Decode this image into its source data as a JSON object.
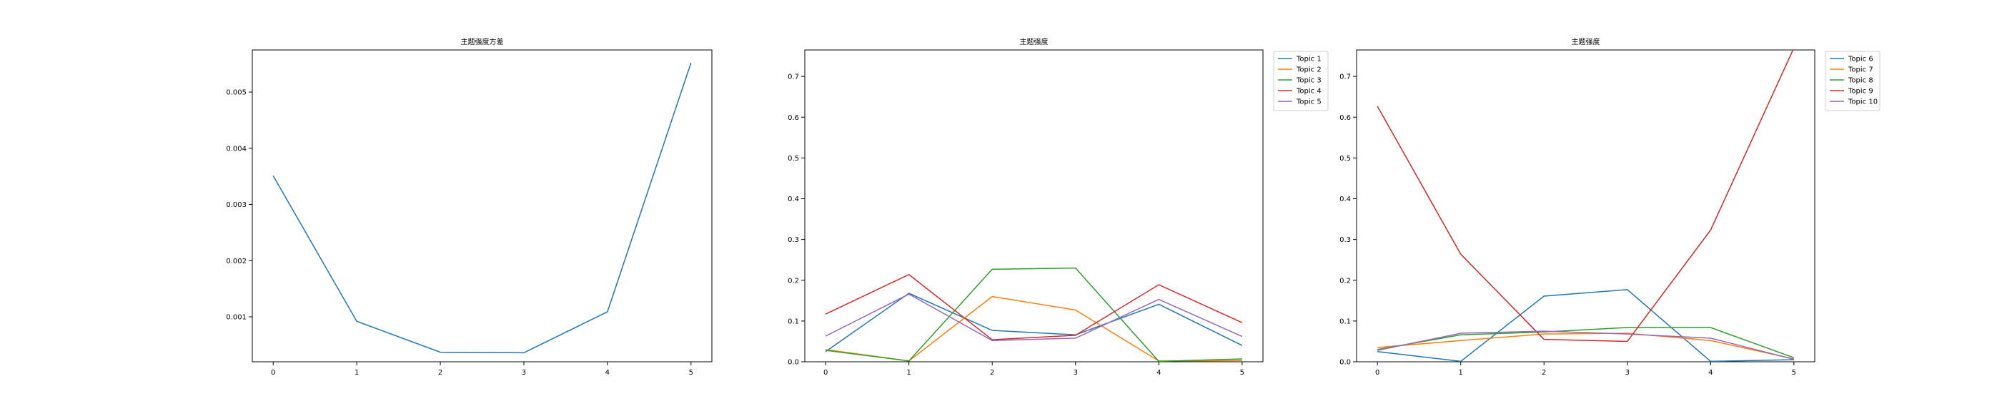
{
  "chart_data": [
    {
      "type": "line",
      "title": "主题强度方差",
      "x": [
        0,
        1,
        2,
        3,
        4,
        5
      ],
      "xticks": [
        "0",
        "1",
        "2",
        "3",
        "4",
        "5"
      ],
      "yticks": [
        "0.001",
        "0.002",
        "0.003",
        "0.004",
        "0.005"
      ],
      "ylim": [
        0.0002,
        0.00575
      ],
      "xlim": [
        -0.25,
        5.25
      ],
      "grid": false,
      "series": [
        {
          "values": [
            0.00351,
            0.00092,
            0.00037,
            0.00036,
            0.00109,
            0.00552
          ],
          "color": "#1f77b4"
        }
      ]
    },
    {
      "type": "line",
      "title": "主题强度",
      "x": [
        0,
        1,
        2,
        3,
        4,
        5
      ],
      "xticks": [
        "0",
        "1",
        "2",
        "3",
        "4",
        "5"
      ],
      "yticks": [
        "0.0",
        "0.1",
        "0.2",
        "0.3",
        "0.4",
        "0.5",
        "0.6",
        "0.7"
      ],
      "ylim": [
        0,
        0.765
      ],
      "xlim": [
        -0.25,
        5.25
      ],
      "grid": false,
      "legend": "outside-top-right",
      "series": [
        {
          "name": "Topic 1",
          "values": [
            0.025,
            0.168,
            0.077,
            0.066,
            0.141,
            0.04
          ],
          "color": "#1f77b4"
        },
        {
          "name": "Topic 2",
          "values": [
            0.03,
            0.002,
            0.16,
            0.127,
            0.002,
            0.003
          ],
          "color": "#ff7f0e"
        },
        {
          "name": "Topic 3",
          "values": [
            0.028,
            0.002,
            0.227,
            0.23,
            0.001,
            0.007
          ],
          "color": "#2ca02c"
        },
        {
          "name": "Topic 4",
          "values": [
            0.117,
            0.214,
            0.054,
            0.065,
            0.189,
            0.096
          ],
          "color": "#d62728"
        },
        {
          "name": "Topic 5",
          "values": [
            0.063,
            0.166,
            0.052,
            0.058,
            0.153,
            0.062
          ],
          "color": "#9467bd"
        }
      ]
    },
    {
      "type": "line",
      "title": "主题强度",
      "x": [
        0,
        1,
        2,
        3,
        4,
        5
      ],
      "xticks": [
        "0",
        "1",
        "2",
        "3",
        "4",
        "5"
      ],
      "yticks": [
        "0.0",
        "0.1",
        "0.2",
        "0.3",
        "0.4",
        "0.5",
        "0.6",
        "0.7"
      ],
      "ylim": [
        0,
        0.765
      ],
      "xlim": [
        -0.25,
        5.25
      ],
      "grid": false,
      "legend": "outside-top-right",
      "series": [
        {
          "name": "Topic 6",
          "values": [
            0.025,
            0.001,
            0.161,
            0.177,
            0.001,
            0.005
          ],
          "color": "#1f77b4"
        },
        {
          "name": "Topic 7",
          "values": [
            0.035,
            0.052,
            0.068,
            0.07,
            0.052,
            0.007
          ],
          "color": "#ff7f0e"
        },
        {
          "name": "Topic 8",
          "values": [
            0.03,
            0.066,
            0.073,
            0.084,
            0.084,
            0.01
          ],
          "color": "#2ca02c"
        },
        {
          "name": "Topic 9",
          "values": [
            0.627,
            0.264,
            0.055,
            0.05,
            0.323,
            0.77
          ],
          "color": "#d62728"
        },
        {
          "name": "Topic 10",
          "values": [
            0.028,
            0.07,
            0.075,
            0.068,
            0.058,
            0.006
          ],
          "color": "#9467bd"
        }
      ]
    }
  ]
}
